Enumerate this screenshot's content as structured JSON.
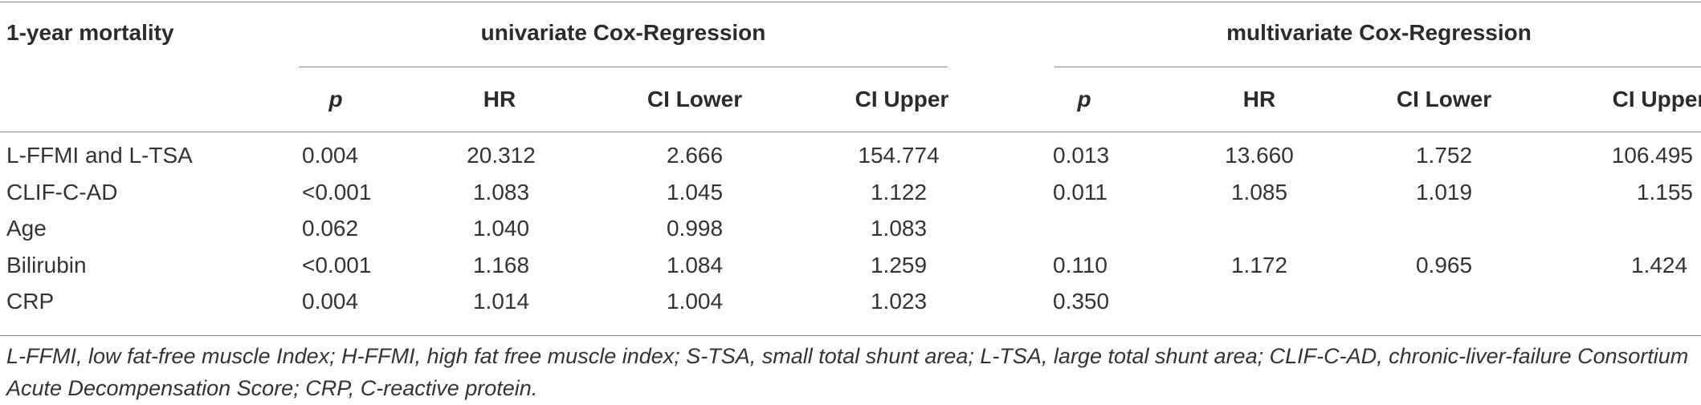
{
  "table": {
    "corner_label": "1-year mortality",
    "group_headers": [
      "univariate Cox-Regression",
      "multivariate Cox-Regression"
    ],
    "columns": [
      "p",
      "HR",
      "CI Lower",
      "CI Upper",
      "p",
      "HR",
      "CI Lower",
      "CI Upper"
    ],
    "rows": [
      {
        "label": "L-FFMI and L-TSA",
        "values": [
          "0.004",
          "20.312",
          "2.666",
          "154.774",
          "0.013",
          "13.660",
          "1.752",
          "106.495"
        ]
      },
      {
        "label": "CLIF-C-AD",
        "values": [
          "<0.001",
          "1.083",
          "1.045",
          "1.122",
          "0.011",
          "1.085",
          "1.019",
          "1.155"
        ]
      },
      {
        "label": "Age",
        "values": [
          "0.062",
          "1.040",
          "0.998",
          "1.083",
          "",
          "",
          "",
          ""
        ]
      },
      {
        "label": "Bilirubin",
        "values": [
          "<0.001",
          "1.168",
          "1.084",
          "1.259",
          "0.110",
          "1.172",
          "0.965",
          "1.424"
        ]
      },
      {
        "label": "CRP",
        "values": [
          "0.004",
          "1.014",
          "1.004",
          "1.023",
          "0.350",
          "",
          "",
          ""
        ]
      }
    ],
    "footnote": "L-FFMI, low fat-free muscle Index; H-FFMI, high fat free muscle index; S-TSA, small total shunt area; L-TSA, large total shunt area; CLIF-C-AD, chronic-liver-failure Consortium Acute Decompensation Score; CRP, C-reactive protein."
  }
}
